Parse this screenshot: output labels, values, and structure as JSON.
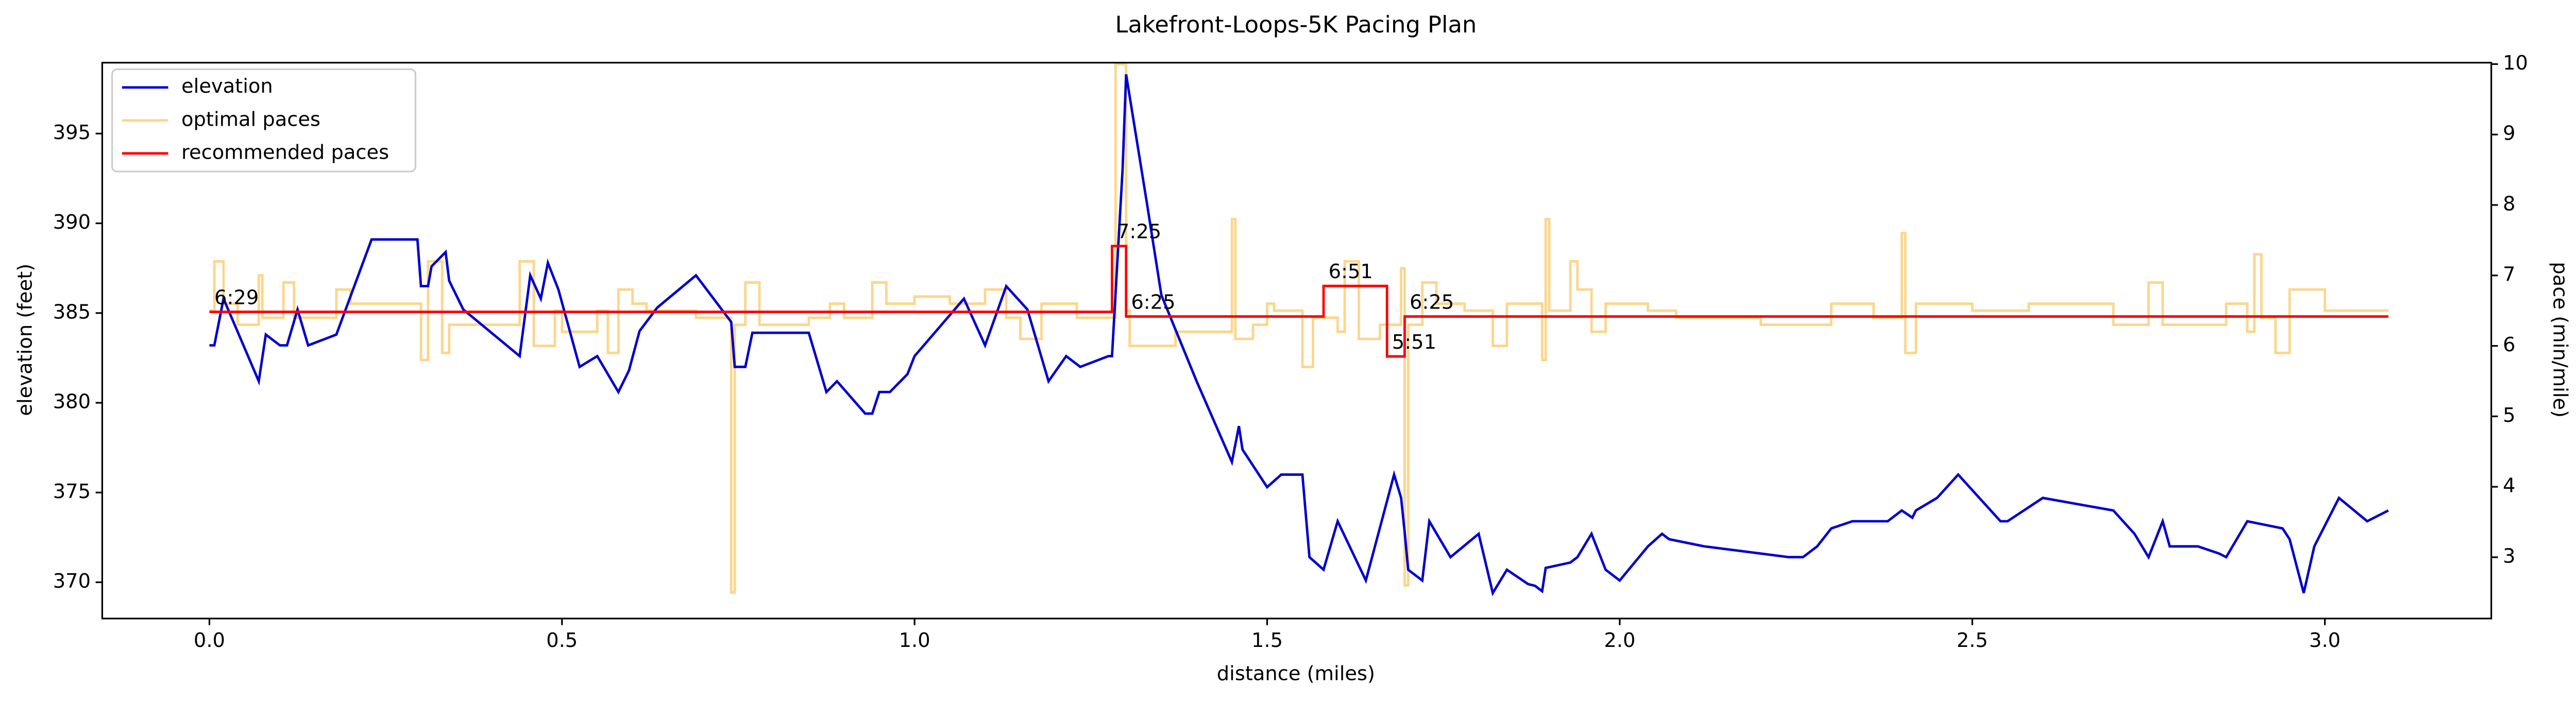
{
  "chart_data": {
    "type": "line",
    "title": "Lakefront-Loops-5K Pacing Plan",
    "xlabel": "distance (miles)",
    "ylabel": "elevation (feet)",
    "y2label": "pace (min/mile)",
    "xlim": [
      -0.152,
      3.236
    ],
    "ylim": [
      367.98,
      398.95
    ],
    "y2lim": [
      2.13,
      10.02
    ],
    "xticks": [
      {
        "value": 0,
        "label": "0.0"
      },
      {
        "value": 0.5,
        "label": "0.5"
      },
      {
        "value": 1,
        "label": "1.0"
      },
      {
        "value": 1.5,
        "label": "1.5"
      },
      {
        "value": 2,
        "label": "2.0"
      },
      {
        "value": 2.5,
        "label": "2.5"
      },
      {
        "value": 3,
        "label": "3.0"
      }
    ],
    "yticks": [
      370,
      375,
      380,
      385,
      390,
      395
    ],
    "y2ticks": [
      3,
      4,
      5,
      6,
      7,
      8,
      9,
      10
    ],
    "legend": "upper left",
    "series": [
      {
        "name": "elevation",
        "color": "#0000cd",
        "style": "line",
        "x": [
          0,
          0.007,
          0.02,
          0.07,
          0.08,
          0.1,
          0.11,
          0.125,
          0.14,
          0.18,
          0.23,
          0.295,
          0.3,
          0.31,
          0.315,
          0.335,
          0.34,
          0.36,
          0.44,
          0.455,
          0.47,
          0.48,
          0.495,
          0.525,
          0.55,
          0.58,
          0.595,
          0.61,
          0.635,
          0.69,
          0.74,
          0.745,
          0.76,
          0.77,
          0.85,
          0.875,
          0.89,
          0.93,
          0.94,
          0.95,
          0.965,
          0.99,
          1.0,
          1.07,
          1.1,
          1.13,
          1.16,
          1.19,
          1.215,
          1.235,
          1.275,
          1.28,
          1.295,
          1.3,
          1.33,
          1.35,
          1.4,
          1.45,
          1.46,
          1.465,
          1.5,
          1.52,
          1.55,
          1.56,
          1.58,
          1.6,
          1.64,
          1.68,
          1.69,
          1.695,
          1.7,
          1.72,
          1.73,
          1.76,
          1.8,
          1.82,
          1.84,
          1.87,
          1.88,
          1.89,
          1.895,
          1.93,
          1.94,
          1.96,
          1.98,
          2.0,
          2.04,
          2.06,
          2.07,
          2.12,
          2.24,
          2.26,
          2.28,
          2.3,
          2.33,
          2.38,
          2.4,
          2.415,
          2.42,
          2.45,
          2.48,
          2.51,
          2.54,
          2.55,
          2.6,
          2.7,
          2.73,
          2.75,
          2.77,
          2.78,
          2.82,
          2.85,
          2.86,
          2.89,
          2.94,
          2.95,
          2.97,
          2.985,
          3.02,
          3.06,
          3.09
        ],
        "values": [
          383.2,
          383.2,
          385.8,
          381.2,
          383.8,
          383.2,
          383.2,
          385.2,
          383.2,
          383.8,
          389.1,
          389.1,
          386.5,
          386.5,
          387.6,
          388.4,
          386.8,
          385.2,
          382.6,
          387.1,
          385.8,
          387.8,
          386.3,
          382.0,
          382.6,
          380.6,
          381.8,
          384.0,
          385.3,
          387.1,
          384.5,
          382.0,
          382.0,
          383.9,
          383.9,
          380.6,
          381.2,
          379.4,
          379.4,
          380.6,
          380.6,
          381.6,
          382.6,
          385.8,
          383.2,
          386.5,
          385.2,
          381.2,
          382.6,
          382.0,
          382.6,
          382.6,
          393.0,
          398.3,
          391.0,
          386.0,
          381.2,
          376.7,
          378.7,
          377.4,
          375.3,
          376.0,
          376.0,
          371.4,
          370.7,
          373.4,
          370.1,
          376.0,
          374.7,
          372.8,
          370.7,
          370.1,
          373.4,
          371.4,
          372.7,
          369.4,
          370.7,
          369.9,
          369.8,
          369.5,
          370.8,
          371.1,
          371.4,
          372.7,
          370.7,
          370.1,
          372.0,
          372.7,
          372.4,
          372.0,
          371.4,
          371.4,
          372.0,
          373.0,
          373.4,
          373.4,
          374.0,
          373.6,
          374.0,
          374.7,
          376.0,
          374.7,
          373.4,
          373.4,
          374.7,
          374.0,
          372.7,
          371.4,
          373.4,
          372.0,
          372.0,
          371.6,
          371.4,
          373.4,
          373.0,
          372.4,
          369.4,
          372.0,
          374.7,
          373.4,
          374.0
        ]
      },
      {
        "name": "optimal paces",
        "color": "#fbd68c",
        "style": "step",
        "axis": "y2",
        "x": [
          0,
          0.007,
          0.02,
          0.04,
          0.07,
          0.075,
          0.1,
          0.105,
          0.12,
          0.18,
          0.2,
          0.25,
          0.3,
          0.31,
          0.33,
          0.34,
          0.44,
          0.46,
          0.49,
          0.5,
          0.55,
          0.565,
          0.58,
          0.6,
          0.62,
          0.69,
          0.74,
          0.745,
          0.76,
          0.78,
          0.85,
          0.88,
          0.9,
          0.94,
          0.96,
          1.0,
          1.05,
          1.1,
          1.13,
          1.15,
          1.18,
          1.23,
          1.285,
          1.3,
          1.305,
          1.37,
          1.45,
          1.455,
          1.48,
          1.5,
          1.51,
          1.55,
          1.565,
          1.6,
          1.61,
          1.63,
          1.66,
          1.69,
          1.695,
          1.7,
          1.72,
          1.74,
          1.78,
          1.82,
          1.84,
          1.89,
          1.895,
          1.9,
          1.93,
          1.94,
          1.96,
          1.98,
          2.04,
          2.08,
          2.2,
          2.3,
          2.36,
          2.4,
          2.405,
          2.42,
          2.5,
          2.58,
          2.7,
          2.75,
          2.77,
          2.86,
          2.89,
          2.9,
          2.91,
          2.93,
          2.95,
          3.0,
          3.06,
          3.09
        ],
        "values": [
          6.5,
          7.2,
          6.6,
          6.3,
          7.0,
          6.4,
          6.4,
          6.9,
          6.4,
          6.8,
          6.6,
          6.6,
          5.8,
          7.2,
          5.9,
          6.3,
          7.2,
          6.0,
          6.5,
          6.2,
          6.5,
          5.9,
          6.8,
          6.6,
          6.5,
          6.4,
          2.5,
          6.3,
          6.9,
          6.3,
          6.4,
          6.6,
          6.4,
          6.9,
          6.6,
          6.7,
          6.6,
          6.8,
          6.4,
          6.1,
          6.6,
          6.4,
          10,
          6.5,
          6.0,
          6.2,
          7.8,
          6.1,
          6.3,
          6.6,
          6.5,
          5.7,
          6.4,
          6.2,
          7.2,
          6.1,
          6.3,
          7.1,
          2.6,
          6.3,
          6.9,
          6.6,
          6.5,
          6.0,
          6.6,
          5.8,
          7.8,
          6.5,
          7.2,
          6.8,
          6.2,
          6.6,
          6.5,
          6.4,
          6.3,
          6.6,
          6.4,
          7.6,
          5.9,
          6.6,
          6.5,
          6.6,
          6.3,
          6.9,
          6.3,
          6.6,
          6.2,
          7.3,
          6.4,
          5.9,
          6.8,
          6.5,
          6.5,
          6.5
        ]
      },
      {
        "name": "recommended paces",
        "color": "#ff0000",
        "style": "step",
        "axis": "y2",
        "x": [
          0,
          1.28,
          1.3,
          1.58,
          1.67,
          1.695,
          3.09
        ],
        "values": [
          6.483,
          7.417,
          6.417,
          6.85,
          5.85,
          6.417,
          6.417
        ],
        "value_labels": [
          "6:29",
          "7:25",
          "6:25",
          "6:51",
          "5:51",
          "6:25",
          null
        ]
      }
    ]
  }
}
